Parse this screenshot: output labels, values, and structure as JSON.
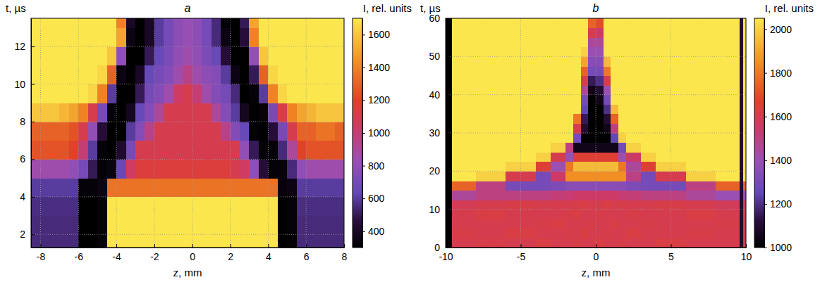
{
  "chart_data": [
    {
      "type": "heatmap",
      "title": "a",
      "xlabel": "z, mm",
      "ylabel": "t, µs",
      "xlim": [
        -8.5,
        8
      ],
      "ylim": [
        1.3,
        13.5
      ],
      "xticks": [
        -8,
        -6,
        -4,
        -2,
        0,
        2,
        4,
        6,
        8
      ],
      "yticks": [
        2,
        4,
        6,
        8,
        10,
        12
      ],
      "grid": true,
      "x_edges": [
        -8.5,
        -8,
        -7.5,
        -7,
        -6.5,
        -6,
        -5.5,
        -5,
        -4.5,
        -4,
        -3.5,
        -3,
        -2.5,
        -2,
        -1.5,
        -1,
        -0.5,
        0,
        0.5,
        1,
        1.5,
        2,
        2.5,
        3,
        3.5,
        4,
        4.5,
        5,
        5.5,
        6,
        6.5,
        7,
        7.5,
        8
      ],
      "y_edges": [
        1.3,
        2,
        3,
        4,
        5,
        6,
        7,
        8,
        9,
        10,
        11,
        12,
        13,
        13.5
      ],
      "values": [
        [
          550,
          550,
          550,
          550,
          550,
          300,
          300,
          320,
          1700,
          1700,
          1700,
          1700,
          1700,
          1700,
          1700,
          1700,
          1700,
          1700,
          1700,
          1700,
          1700,
          1700,
          1700,
          1700,
          1700,
          1700,
          300,
          320,
          550,
          550,
          550,
          550,
          550
        ],
        [
          550,
          550,
          550,
          550,
          550,
          300,
          300,
          320,
          1700,
          1700,
          1700,
          1700,
          1700,
          1700,
          1700,
          1700,
          1700,
          1700,
          1700,
          1700,
          1700,
          1700,
          1700,
          1700,
          1700,
          1700,
          300,
          320,
          550,
          550,
          550,
          550,
          550
        ],
        [
          560,
          560,
          560,
          560,
          560,
          300,
          300,
          320,
          1700,
          1700,
          1700,
          1700,
          1700,
          1700,
          1700,
          1700,
          1700,
          1700,
          1700,
          1700,
          1700,
          1700,
          1700,
          1700,
          1700,
          1700,
          300,
          320,
          560,
          560,
          560,
          560,
          560
        ],
        [
          600,
          600,
          600,
          600,
          600,
          320,
          320,
          350,
          1350,
          1350,
          1350,
          1350,
          1350,
          1350,
          1350,
          1350,
          1350,
          1350,
          1350,
          1350,
          1350,
          1350,
          1350,
          1350,
          1350,
          1350,
          330,
          350,
          600,
          600,
          600,
          600,
          600
        ],
        [
          850,
          850,
          850,
          850,
          800,
          700,
          500,
          320,
          340,
          650,
          1050,
          1150,
          1150,
          1150,
          1150,
          1150,
          1150,
          1150,
          1150,
          1150,
          1150,
          1100,
          1050,
          800,
          450,
          320,
          330,
          550,
          800,
          850,
          850,
          850,
          850
        ],
        [
          1250,
          1250,
          1250,
          1250,
          1200,
          1000,
          600,
          320,
          300,
          420,
          700,
          1100,
          1100,
          1100,
          1100,
          1100,
          1100,
          1100,
          1100,
          1100,
          1100,
          1100,
          800,
          500,
          320,
          320,
          550,
          900,
          1200,
          1250,
          1250,
          1250,
          1250
        ],
        [
          1300,
          1300,
          1300,
          1300,
          1250,
          1100,
          800,
          450,
          300,
          300,
          600,
          750,
          950,
          1100,
          1100,
          1100,
          1100,
          1100,
          1100,
          1100,
          950,
          750,
          650,
          320,
          300,
          450,
          700,
          1100,
          1300,
          1300,
          1350,
          1350,
          1300
        ],
        [
          1600,
          1600,
          1600,
          1550,
          1500,
          1400,
          1100,
          700,
          320,
          300,
          380,
          650,
          750,
          900,
          1100,
          1100,
          1100,
          1100,
          1100,
          900,
          750,
          600,
          380,
          300,
          330,
          700,
          1100,
          1400,
          1500,
          1550,
          1600,
          1600,
          1600
        ],
        [
          1700,
          1700,
          1700,
          1700,
          1700,
          1700,
          1650,
          1400,
          600,
          300,
          300,
          500,
          700,
          750,
          850,
          1050,
          1100,
          1000,
          850,
          750,
          700,
          550,
          300,
          320,
          600,
          1400,
          1650,
          1700,
          1700,
          1700,
          1700,
          1700,
          1700
        ],
        [
          1700,
          1700,
          1700,
          1700,
          1700,
          1700,
          1700,
          1650,
          1300,
          350,
          300,
          400,
          650,
          700,
          750,
          850,
          950,
          850,
          780,
          750,
          600,
          350,
          300,
          500,
          1300,
          1650,
          1700,
          1700,
          1700,
          1700,
          1700,
          1700,
          1700
        ],
        [
          1700,
          1700,
          1700,
          1700,
          1700,
          1700,
          1700,
          1700,
          1600,
          800,
          300,
          300,
          500,
          650,
          720,
          800,
          850,
          800,
          720,
          650,
          450,
          300,
          300,
          800,
          1600,
          1700,
          1700,
          1700,
          1700,
          1700,
          1700,
          1700,
          1700
        ],
        [
          1700,
          1700,
          1700,
          1700,
          1700,
          1700,
          1700,
          1700,
          1700,
          1500,
          350,
          300,
          400,
          600,
          700,
          780,
          820,
          780,
          700,
          550,
          350,
          300,
          450,
          1400,
          1700,
          1700,
          1700,
          1700,
          1700,
          1700,
          1700,
          1700,
          1700
        ],
        [
          1700,
          1700,
          1700,
          1700,
          1700,
          1700,
          1700,
          1700,
          1700,
          1400,
          400,
          300,
          400,
          600,
          700,
          780,
          820,
          780,
          700,
          550,
          320,
          300,
          500,
          1500,
          1700,
          1700,
          1700,
          1700,
          1700,
          1700,
          1700,
          1700,
          1700
        ]
      ],
      "colorbar": {
        "label": "I, rel. units",
        "range": [
          300,
          1700
        ],
        "ticks": [
          400,
          600,
          800,
          1000,
          1200,
          1400,
          1600
        ]
      }
    },
    {
      "type": "heatmap",
      "title": "b",
      "xlabel": "z, mm",
      "ylabel": "t, µs",
      "xlim": [
        -10,
        10
      ],
      "ylim": [
        0,
        60
      ],
      "xticks": [
        -10,
        -5,
        0,
        5,
        10
      ],
      "yticks": [
        0,
        10,
        20,
        30,
        40,
        50,
        60
      ],
      "grid": true,
      "x_edges": [
        -10,
        -9.6,
        -8,
        -6,
        -4,
        -3,
        -2,
        -1.5,
        -1,
        -0.5,
        0,
        0.5,
        1,
        1.5,
        2,
        3,
        4,
        6,
        8,
        9.6,
        9.8,
        10
      ],
      "y_edges": [
        0,
        2.5,
        5,
        7.5,
        10,
        12.5,
        15,
        17.5,
        20,
        22.5,
        25,
        27.5,
        30,
        32.5,
        35,
        37.5,
        40,
        42.5,
        45,
        47.5,
        50,
        52.5,
        55,
        57.5,
        60
      ],
      "values": [
        [
          1000,
          1600,
          1610,
          1600,
          1620,
          1600,
          1600,
          1610,
          1600,
          1600,
          1620,
          1600,
          1600,
          1610,
          1600,
          1600,
          1620,
          1600,
          1600,
          1100,
          1600
        ],
        [
          1000,
          1610,
          1600,
          1620,
          1600,
          1600,
          1610,
          1600,
          1630,
          1600,
          1600,
          1610,
          1600,
          1600,
          1620,
          1600,
          1600,
          1610,
          1600,
          1100,
          1600
        ],
        [
          1000,
          1600,
          1600,
          1600,
          1610,
          1620,
          1600,
          1600,
          1600,
          1610,
          1600,
          1600,
          1620,
          1600,
          1600,
          1610,
          1600,
          1600,
          1610,
          1100,
          1600
        ],
        [
          1000,
          1600,
          1620,
          1600,
          1600,
          1600,
          1610,
          1620,
          1600,
          1600,
          1610,
          1600,
          1600,
          1600,
          1610,
          1600,
          1600,
          1620,
          1600,
          1100,
          1600
        ],
        [
          1000,
          1590,
          1600,
          1610,
          1600,
          1600,
          1600,
          1610,
          1620,
          1600,
          1600,
          1620,
          1600,
          1610,
          1600,
          1600,
          1610,
          1600,
          1580,
          1100,
          1580
        ],
        [
          1000,
          1450,
          1500,
          1500,
          1500,
          1520,
          1530,
          1550,
          1550,
          1550,
          1550,
          1550,
          1550,
          1530,
          1520,
          1500,
          1500,
          1450,
          1400,
          1100,
          1400
        ],
        [
          1000,
          1750,
          1500,
          1300,
          1300,
          1320,
          1350,
          1350,
          1350,
          1350,
          1350,
          1350,
          1350,
          1350,
          1320,
          1300,
          1300,
          1500,
          1750,
          1100,
          1750
        ],
        [
          1000,
          2050,
          2000,
          1600,
          1300,
          1550,
          1850,
          1850,
          1850,
          1850,
          1850,
          1850,
          1850,
          1850,
          1500,
          1300,
          1600,
          2000,
          2050,
          1100,
          2050
        ],
        [
          1000,
          2050,
          2050,
          2000,
          1650,
          1400,
          1800,
          1950,
          1950,
          1950,
          1950,
          1950,
          1950,
          1800,
          1450,
          1650,
          2000,
          2050,
          2050,
          1100,
          2050
        ],
        [
          1000,
          2050,
          2050,
          2050,
          2000,
          1600,
          1400,
          1650,
          1650,
          1650,
          1650,
          1650,
          1650,
          1400,
          1550,
          2000,
          2050,
          2050,
          2050,
          1100,
          2050
        ],
        [
          1000,
          2050,
          2050,
          2050,
          2050,
          2000,
          1500,
          1050,
          1050,
          1050,
          1050,
          1050,
          1050,
          1300,
          2000,
          2050,
          2050,
          2050,
          2050,
          1100,
          2050
        ],
        [
          1000,
          2050,
          2050,
          2050,
          2050,
          2050,
          2050,
          1300,
          1000,
          1000,
          1000,
          1000,
          1250,
          2000,
          2050,
          2050,
          2050,
          2050,
          2050,
          1100,
          2050
        ],
        [
          1000,
          2050,
          2050,
          2050,
          2050,
          2050,
          2050,
          1600,
          1100,
          1000,
          1000,
          1050,
          1500,
          2050,
          2050,
          2050,
          2050,
          2050,
          2050,
          1100,
          2050
        ],
        [
          1000,
          2050,
          2050,
          2050,
          2050,
          2050,
          2050,
          1800,
          1150,
          1000,
          1000,
          1100,
          1750,
          2050,
          2050,
          2050,
          2050,
          2050,
          2050,
          1100,
          2050
        ],
        [
          1000,
          2050,
          2050,
          2050,
          2050,
          2050,
          2050,
          2050,
          1250,
          1000,
          1000,
          1200,
          1950,
          2050,
          2050,
          2050,
          2050,
          2050,
          2050,
          1100,
          2050
        ],
        [
          1000,
          2050,
          2050,
          2050,
          2050,
          2050,
          2050,
          2050,
          1300,
          1000,
          1050,
          1300,
          2050,
          2050,
          2050,
          2050,
          2050,
          2050,
          2050,
          1100,
          2050
        ],
        [
          1000,
          2050,
          2050,
          2050,
          2050,
          2050,
          2050,
          2050,
          1450,
          1050,
          1100,
          1400,
          2050,
          2050,
          2050,
          2050,
          2050,
          2050,
          2050,
          1100,
          2050
        ],
        [
          1000,
          2050,
          2050,
          2050,
          2050,
          2050,
          2050,
          2050,
          1600,
          1150,
          1200,
          1600,
          2050,
          2050,
          2050,
          2050,
          2050,
          2050,
          2050,
          1100,
          2050
        ],
        [
          1000,
          2050,
          2050,
          2050,
          2050,
          2050,
          2050,
          2050,
          1750,
          1300,
          1300,
          1800,
          2050,
          2050,
          2050,
          2050,
          2050,
          2050,
          2050,
          1100,
          2050
        ],
        [
          1000,
          2050,
          2050,
          2050,
          2050,
          2050,
          2050,
          2050,
          1900,
          1350,
          1350,
          1950,
          2050,
          2050,
          2050,
          2050,
          2050,
          2050,
          2050,
          1100,
          2050
        ],
        [
          1000,
          2050,
          2050,
          2050,
          2050,
          2050,
          2050,
          2050,
          2000,
          1400,
          1400,
          2050,
          2050,
          2050,
          2050,
          2050,
          2050,
          2050,
          2050,
          1100,
          2050
        ],
        [
          1000,
          2050,
          2050,
          2050,
          2050,
          2050,
          2050,
          2050,
          2050,
          1450,
          1450,
          2050,
          2050,
          2050,
          2050,
          2050,
          2050,
          2050,
          2050,
          1100,
          2050
        ],
        [
          1000,
          2050,
          2050,
          2050,
          2050,
          2050,
          2050,
          2050,
          2050,
          1600,
          1550,
          2050,
          2050,
          2050,
          2050,
          2050,
          2050,
          2050,
          2050,
          1100,
          2050
        ],
        [
          1000,
          2050,
          2050,
          2050,
          2050,
          2050,
          2050,
          2050,
          2050,
          1750,
          1700,
          2050,
          2050,
          2050,
          2050,
          2050,
          2050,
          2050,
          2050,
          1100,
          2050
        ]
      ],
      "colorbar": {
        "label": "I, rel. units",
        "range": [
          1000,
          2050
        ],
        "ticks": [
          1000,
          1200,
          1400,
          1600,
          1800,
          2000
        ]
      }
    }
  ]
}
